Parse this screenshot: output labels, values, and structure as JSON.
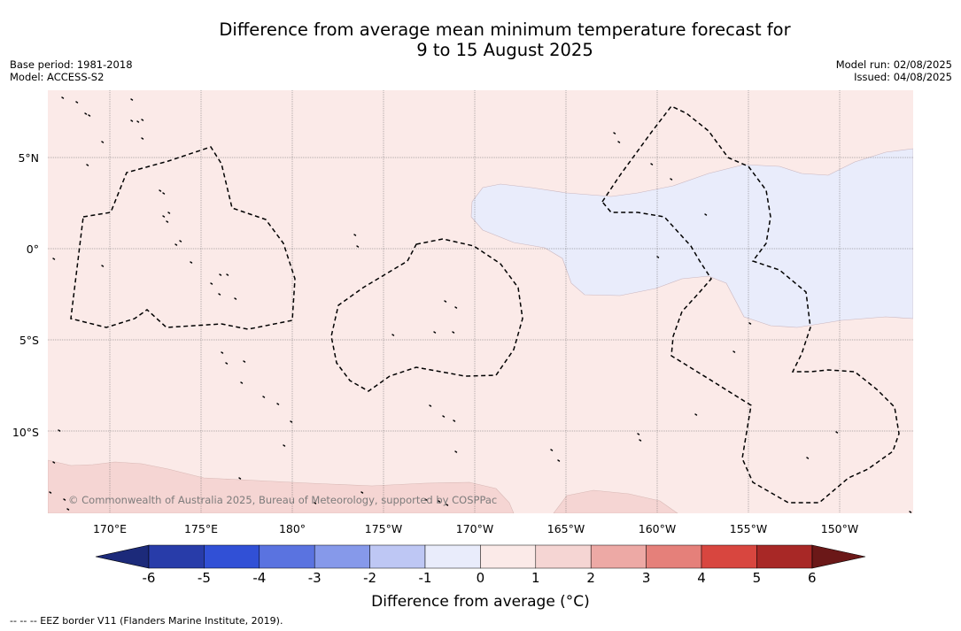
{
  "title": {
    "line1": "Difference from average mean minimum temperature forecast for",
    "line2": "9 to 15 August 2025"
  },
  "meta": {
    "base_period": "Base period: 1981-2018",
    "model": "Model: ACCESS-S2",
    "model_run": "Model run: 02/08/2025",
    "issued": "Issued: 04/08/2025"
  },
  "map": {
    "lat_labels": [
      "5°N",
      "0°",
      "5°S",
      "10°S"
    ],
    "lon_labels": [
      "170°E",
      "175°E",
      "180°",
      "175°W",
      "170°W",
      "165°W",
      "160°W",
      "155°W",
      "150°W"
    ],
    "copyright": "© Commonwealth of Australia 2025, Bureau of Meteorology, supported by COSPPac",
    "background_color": "#fbeae8",
    "cool_anomaly_color": "#e9ecfb",
    "warm_anomaly_color": "#f5d5d3"
  },
  "colorbar": {
    "ticks": [
      "-6",
      "-5",
      "-4",
      "-3",
      "-2",
      "-1",
      "0",
      "1",
      "2",
      "3",
      "4",
      "5",
      "6"
    ],
    "colors": [
      "#283ca9",
      "#3150d6",
      "#5a73e0",
      "#8699ea",
      "#bec7f4",
      "#e9ecfb",
      "#fbeae8",
      "#f5d5d3",
      "#eda9a5",
      "#e5807a",
      "#d8463f",
      "#a82826"
    ],
    "under_color": "#1c2a7a",
    "over_color": "#6b1818",
    "label": "Difference from average (°C)"
  },
  "footer": {
    "legend": "--  --  -- EEZ border V11 (Flanders Marine Institute, 2019)."
  }
}
